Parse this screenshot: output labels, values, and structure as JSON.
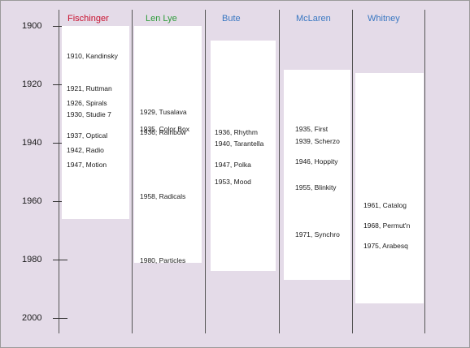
{
  "axis": {
    "years": [
      "1900",
      "1920",
      "1940",
      "1960",
      "1980",
      "2000"
    ]
  },
  "artists": [
    {
      "name": "Fischinger",
      "color": "#c8102e",
      "span": [
        1900,
        1966
      ],
      "events": [
        "1910, Kandinsky",
        "1921, Ruttman",
        "1926, Spirals",
        "1930, Studie 7",
        "1937, Optical",
        "1942, Radio",
        "1947, Motion"
      ]
    },
    {
      "name": "Len Lye",
      "color": "#2e9c3a",
      "span": [
        1900,
        1981
      ],
      "events": [
        "1929, Tusalava",
        "1935, Color Box",
        "1936, Rainbow",
        "1958, Radicals",
        "1980, Particles"
      ]
    },
    {
      "name": "Bute",
      "color": "#3a78c2",
      "span": [
        1905,
        1984
      ],
      "events": [
        "1936, Rhythm",
        "1940, Tarantella",
        "1947, Polka",
        "1953, Mood"
      ]
    },
    {
      "name": "McLaren",
      "color": "#3a78c2",
      "span": [
        1915,
        1987
      ],
      "events": [
        "1935, First",
        "1939, Scherzo",
        "1946, Hoppity",
        "1955, Blinkity",
        "1971, Synchro"
      ]
    },
    {
      "name": "Whitney",
      "color": "#3a78c2",
      "span": [
        1916,
        1995
      ],
      "events": [
        "1961, Catalog",
        "1968, Permut'n",
        "1975, Arabesq"
      ]
    }
  ]
}
